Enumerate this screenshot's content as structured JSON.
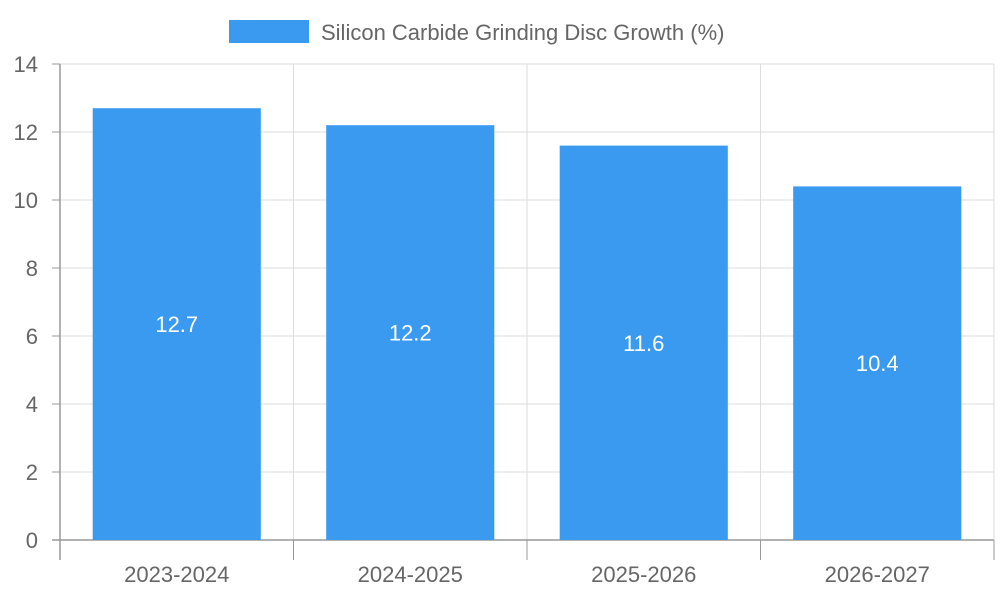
{
  "chart_data": {
    "type": "bar",
    "title": "",
    "xlabel": "",
    "ylabel": "",
    "categories": [
      "2023-2024",
      "2024-2025",
      "2025-2026",
      "2026-2027"
    ],
    "series": [
      {
        "name": "Silicon Carbide Grinding Disc Growth (%)",
        "values": [
          12.7,
          12.2,
          11.6,
          10.4
        ],
        "color": "#3a9af0"
      }
    ],
    "ylim": [
      0,
      14
    ],
    "yticks": [
      "0",
      "2",
      "4",
      "6",
      "8",
      "10",
      "12",
      "14"
    ],
    "grid": true,
    "legend_position": "top-center",
    "data_labels": [
      "12.7",
      "12.2",
      "11.6",
      "10.4"
    ]
  }
}
